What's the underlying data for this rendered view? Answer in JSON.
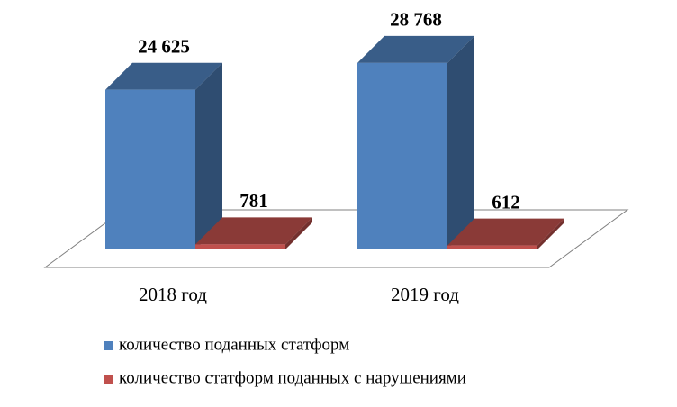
{
  "chart_data": {
    "type": "bar3d",
    "categories": [
      "2018 год",
      "2019 год"
    ],
    "series": [
      {
        "name": "количество поданных статформ",
        "color": "#4f81bd",
        "values": [
          24625,
          28768
        ],
        "value_labels": [
          "24 625",
          "28 768"
        ]
      },
      {
        "name": "количество статформ поданных с нарушениями",
        "color": "#c0504d",
        "values": [
          781,
          612
        ],
        "value_labels": [
          "781",
          "612"
        ]
      }
    ]
  }
}
